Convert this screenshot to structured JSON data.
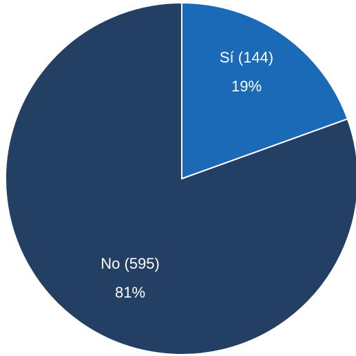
{
  "chart_data": {
    "type": "pie",
    "slices": [
      {
        "name": "Sí",
        "value": 144,
        "percent_label": "19%",
        "color": "#1a6ab8"
      },
      {
        "name": "No",
        "value": 595,
        "percent_label": "81%",
        "color": "#233f63"
      }
    ],
    "label_colors": {
      "text": "#ffffff",
      "separator": "#ffffff"
    },
    "start_angle": "12 o'clock",
    "direction": "clockwise",
    "legend": "none"
  },
  "labels": {
    "si_line1": "Sí (144)",
    "si_line2": "19%",
    "no_line1": "No (595)",
    "no_line2": "81%"
  }
}
